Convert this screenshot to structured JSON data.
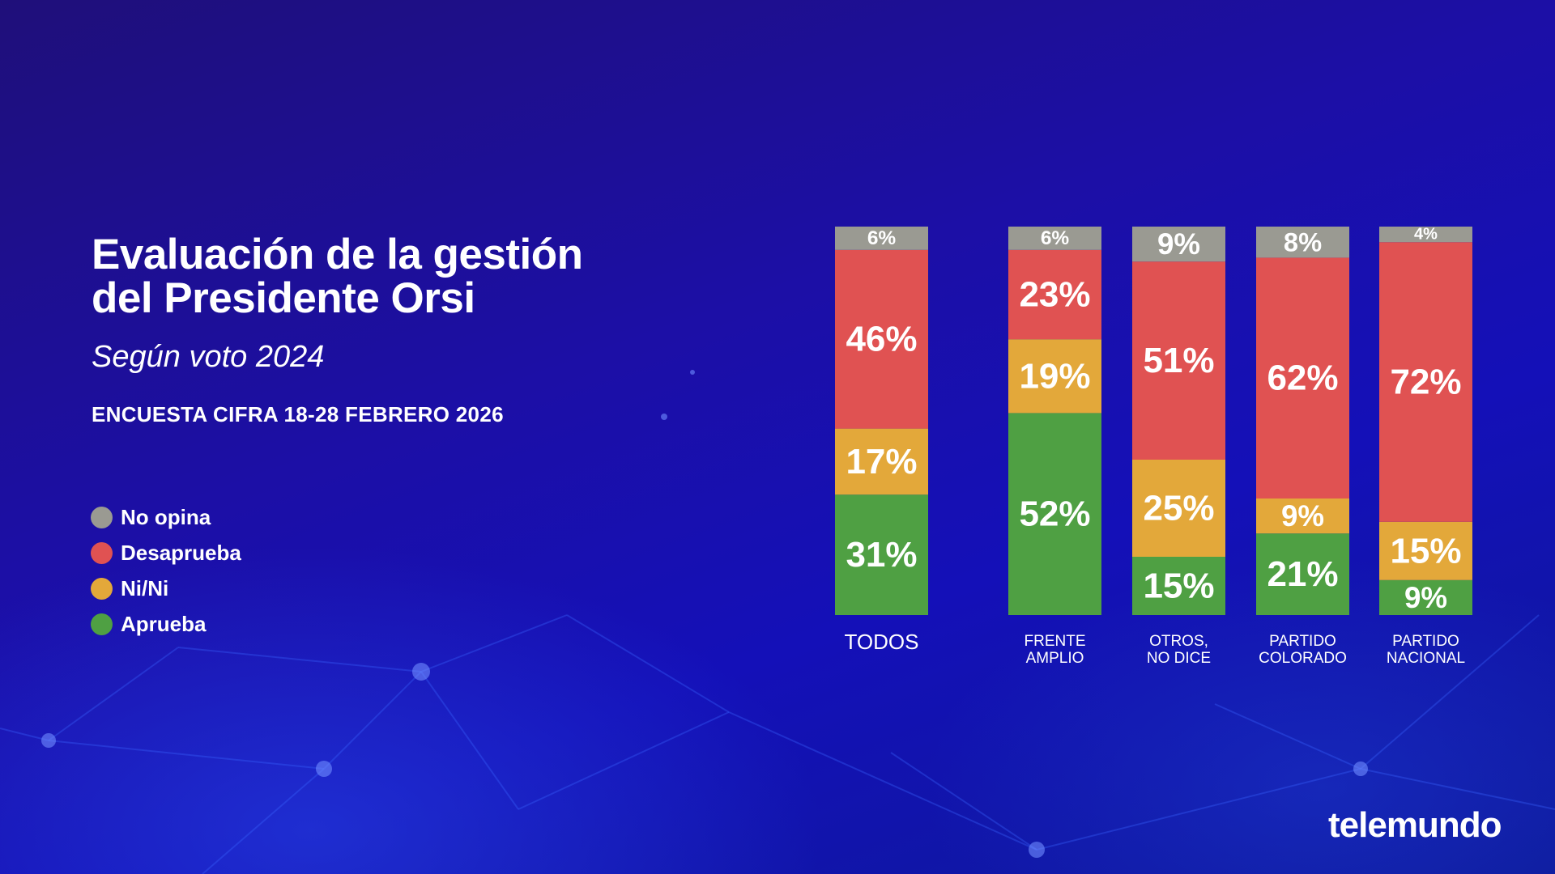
{
  "header": {
    "title_line1": "Evaluación de la gestión",
    "title_line2": "del Presidente Orsi",
    "subtitle": "Según voto 2024",
    "source": "ENCUESTA CIFRA 18-28 FEBRERO 2026"
  },
  "legend": [
    {
      "label": "No opina",
      "color": "#9a9a92"
    },
    {
      "label": "Desaprueba",
      "color": "#e05252"
    },
    {
      "label": "Ni/Ni",
      "color": "#e3a83a"
    },
    {
      "label": "Aprueba",
      "color": "#4fa043"
    }
  ],
  "logo": "telemundo",
  "chart_data": {
    "type": "bar",
    "stacked": true,
    "title": "Evaluación de la gestión del Presidente Orsi",
    "subtitle": "Según voto 2024",
    "categories": [
      [
        "TODOS"
      ],
      [
        "FRENTE",
        "AMPLIO"
      ],
      [
        "OTROS,",
        "NO DICE"
      ],
      [
        "PARTIDO",
        "COLORADO"
      ],
      [
        "PARTIDO",
        "NACIONAL"
      ]
    ],
    "series": [
      {
        "name": "Aprueba",
        "color": "#4fa043",
        "values": [
          31,
          52,
          15,
          21,
          9
        ]
      },
      {
        "name": "Ni/Ni",
        "color": "#e3a83a",
        "values": [
          17,
          19,
          25,
          9,
          15
        ]
      },
      {
        "name": "Desaprueba",
        "color": "#e05252",
        "values": [
          46,
          23,
          51,
          62,
          72
        ]
      },
      {
        "name": "No opina",
        "color": "#9a9a92",
        "values": [
          6,
          6,
          9,
          8,
          4
        ]
      }
    ],
    "value_suffix": "%",
    "ylim": [
      0,
      100
    ],
    "xlabel": "",
    "ylabel": ""
  }
}
